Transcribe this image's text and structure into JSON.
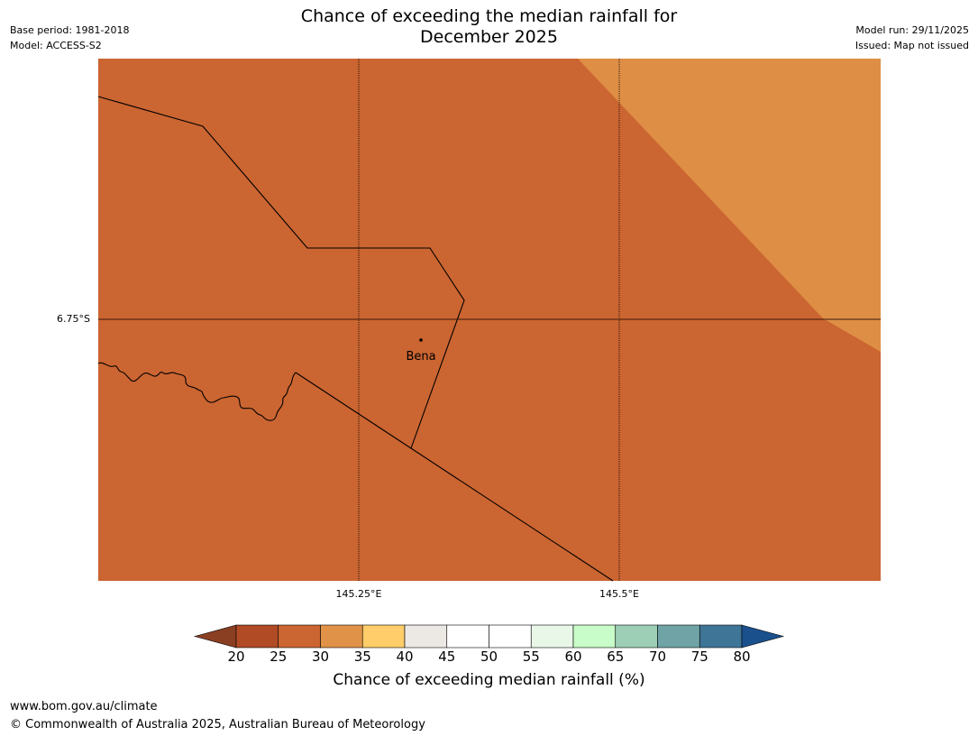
{
  "header": {
    "title_line1": "Chance of exceeding the median rainfall for",
    "title_line2": "December 2025",
    "base_period": "Base period: 1981-2018",
    "model": "Model: ACCESS-S2",
    "model_run": "Model run: 29/11/2025",
    "issued": "Issued: Map not issued"
  },
  "map": {
    "place_label": "Bena",
    "lat_label": "6.75°S",
    "lon_labels": [
      "145.25°E",
      "145.5°E"
    ],
    "colors": {
      "main_fill": "#cb6531",
      "upper_right_fill": "#de8e45",
      "border_line": "#000000",
      "gridline": "#000000"
    }
  },
  "colorbar": {
    "label": "Chance of exceeding median rainfall (%)",
    "ticks": [
      "20",
      "25",
      "30",
      "35",
      "40",
      "45",
      "50",
      "55",
      "60",
      "65",
      "70",
      "75",
      "80"
    ],
    "colors": {
      "below_20": "#8b3f22",
      "20_25": "#b04b26",
      "25_30": "#cb6531",
      "30_35": "#e09248",
      "35_40": "#ffcd6a",
      "40_45": "#ece9e4",
      "45_50": "#ffffff",
      "50_55": "#ffffff",
      "55_60": "#e9f7e9",
      "60_65": "#c8fcc8",
      "65_70": "#9dcfb6",
      "70_75": "#6fa3a6",
      "75_80": "#3f7596",
      "above_80": "#1a508c"
    }
  },
  "footer": {
    "url": "www.bom.gov.au/climate",
    "copyright": "© Commonwealth of Australia 2025, Australian Bureau of Meteorology"
  }
}
